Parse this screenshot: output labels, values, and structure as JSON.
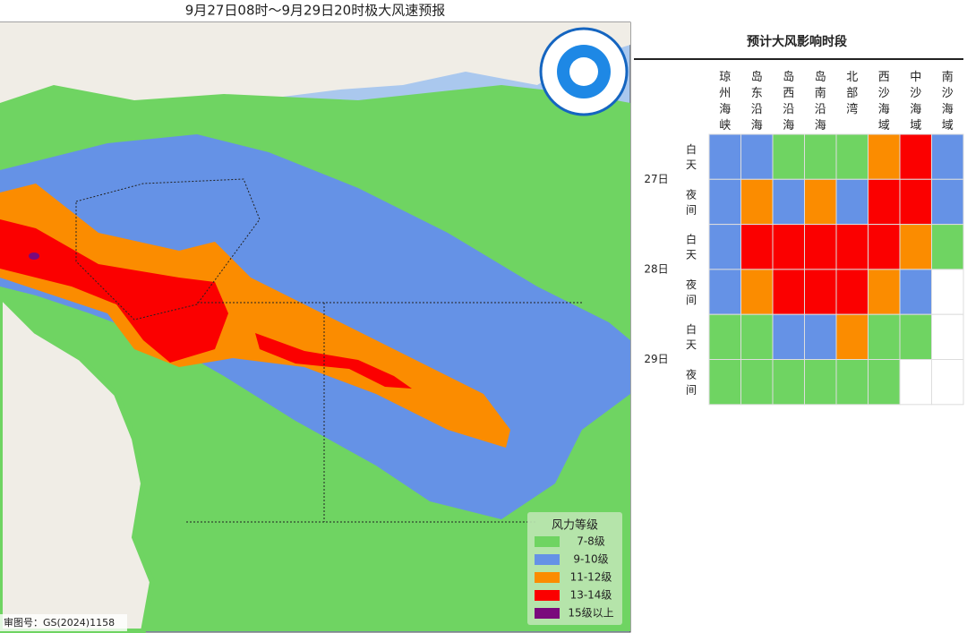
{
  "map": {
    "title": "9月27日08时～9月29日20时极大风速预报",
    "legend": {
      "title": "风力等级",
      "items": [
        {
          "label": "7-8级",
          "color": "#6fd462"
        },
        {
          "label": "9-10级",
          "color": "#6592e6"
        },
        {
          "label": "11-12级",
          "color": "#fb8c00"
        },
        {
          "label": "13-14级",
          "color": "#fb0000"
        },
        {
          "label": "15级以上",
          "color": "#7a0a7c"
        }
      ]
    },
    "footer": "审图号：GS(2024)1158"
  },
  "table": {
    "title": "预计大风影响时段",
    "columns": [
      "琼州海峡",
      "岛东沿海",
      "岛西沿海",
      "岛南沿海",
      "北部湾",
      "西沙海域",
      "中沙海域",
      "南沙海域"
    ],
    "days": [
      "27日",
      "28日",
      "29日"
    ],
    "periods": [
      "白天",
      "夜间",
      "白天",
      "夜间",
      "白天",
      "夜间"
    ],
    "cells": [
      [
        "#6592e6",
        "#6592e6",
        "#6fd462",
        "#6fd462",
        "#6fd462",
        "#fb8c00",
        "#fb0000",
        "#6592e6"
      ],
      [
        "#6592e6",
        "#fb8c00",
        "#6592e6",
        "#fb8c00",
        "#6592e6",
        "#fb0000",
        "#fb0000",
        "#6592e6"
      ],
      [
        "#6592e6",
        "#fb0000",
        "#fb0000",
        "#fb0000",
        "#fb0000",
        "#fb0000",
        "#fb8c00",
        "#6fd462"
      ],
      [
        "#6592e6",
        "#fb8c00",
        "#fb0000",
        "#fb0000",
        "#fb0000",
        "#fb8c00",
        "#6592e6",
        null
      ],
      [
        "#6fd462",
        "#6fd462",
        "#6592e6",
        "#6592e6",
        "#fb8c00",
        "#6fd462",
        "#6fd462",
        null
      ],
      [
        "#6fd462",
        "#6fd462",
        "#6fd462",
        "#6fd462",
        "#6fd462",
        "#6fd462",
        null,
        null
      ]
    ]
  }
}
